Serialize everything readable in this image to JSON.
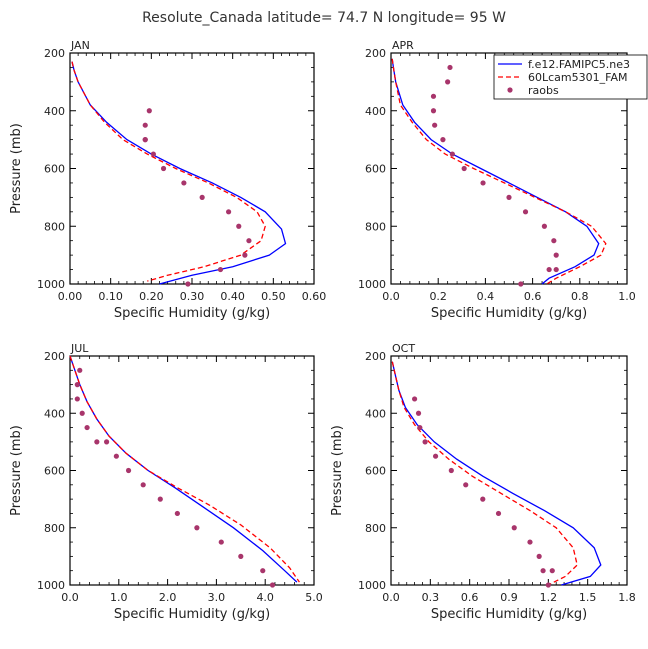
{
  "title": "Resolute_Canada   latitude= 74.7 N longitude= 95 W",
  "legend": {
    "position": "top-right of APR panel",
    "entries": [
      {
        "label": "f.e12.FAMIPC5.ne3",
        "color": "#0000ff",
        "style": "solid",
        "kind": "line"
      },
      {
        "label": "60Lcam5301_FAM",
        "color": "#ff0000",
        "style": "dashed",
        "kind": "line"
      },
      {
        "label": "raobs",
        "color": "#a8356b",
        "style": "dot",
        "kind": "marker"
      }
    ]
  },
  "chart_data": [
    {
      "type": "line",
      "panel": "JAN",
      "xlabel": "Specific Humidity (g/kg)",
      "ylabel": "Pressure (mb)",
      "xlim": [
        0,
        0.6
      ],
      "ylim": [
        200,
        1000
      ],
      "y_inverted": true,
      "xticks": [
        0,
        0.1,
        0.2,
        0.3,
        0.4,
        0.5,
        0.6
      ],
      "xtick_labels": [
        "0.00",
        "0.10",
        "0.20",
        "0.30",
        "0.40",
        "0.50",
        "0.60"
      ],
      "yticks": [
        200,
        400,
        600,
        800,
        1000
      ],
      "ytick_labels": [
        "200",
        "400",
        "600",
        "800",
        "1000"
      ],
      "series": [
        {
          "name": "f.e12.FAMIPC5.ne3",
          "color": "#0000ff",
          "style": "solid",
          "x": [
            0.005,
            0.01,
            0.02,
            0.05,
            0.09,
            0.14,
            0.2,
            0.27,
            0.35,
            0.42,
            0.48,
            0.52,
            0.53,
            0.49,
            0.4,
            0.3,
            0.22
          ],
          "y": [
            230,
            260,
            300,
            380,
            440,
            500,
            550,
            600,
            650,
            700,
            750,
            810,
            860,
            900,
            940,
            970,
            1000
          ]
        },
        {
          "name": "60Lcam5301_FAM",
          "color": "#ff0000",
          "style": "dashed",
          "x": [
            0.005,
            0.01,
            0.02,
            0.05,
            0.085,
            0.13,
            0.19,
            0.26,
            0.34,
            0.41,
            0.46,
            0.48,
            0.47,
            0.42,
            0.33,
            0.24,
            0.19
          ],
          "y": [
            230,
            260,
            300,
            380,
            440,
            500,
            550,
            600,
            650,
            700,
            750,
            800,
            850,
            900,
            940,
            970,
            990
          ]
        },
        {
          "name": "raobs",
          "color": "#a8356b",
          "style": "dot",
          "x": [
            0.195,
            0.185,
            0.185,
            0.185,
            0.205,
            0.23,
            0.28,
            0.325,
            0.39,
            0.415,
            0.44,
            0.43,
            0.37,
            0.29
          ],
          "y": [
            400,
            450,
            500,
            500,
            550,
            600,
            650,
            700,
            750,
            800,
            850,
            900,
            950,
            1000
          ]
        }
      ]
    },
    {
      "type": "line",
      "panel": "APR",
      "xlabel": "Specific Humidity (g/kg)",
      "ylabel": "",
      "xlim": [
        0,
        1.0
      ],
      "ylim": [
        200,
        1000
      ],
      "y_inverted": true,
      "xticks": [
        0,
        0.2,
        0.4,
        0.6,
        0.8,
        1.0
      ],
      "xtick_labels": [
        "0.0",
        "0.2",
        "0.4",
        "0.6",
        "0.8",
        "1.0"
      ],
      "yticks": [
        200,
        400,
        600,
        800,
        1000
      ],
      "ytick_labels": [
        "200",
        "400",
        "600",
        "800",
        "1000"
      ],
      "series": [
        {
          "name": "f.e12.FAMIPC5.ne3",
          "color": "#0000ff",
          "style": "solid",
          "x": [
            0.005,
            0.01,
            0.02,
            0.05,
            0.1,
            0.17,
            0.26,
            0.38,
            0.5,
            0.62,
            0.74,
            0.83,
            0.88,
            0.86,
            0.78,
            0.67,
            0.64
          ],
          "y": [
            220,
            250,
            300,
            380,
            440,
            500,
            550,
            600,
            650,
            700,
            750,
            800,
            860,
            900,
            940,
            980,
            1000
          ]
        },
        {
          "name": "60Lcam5301_FAM",
          "color": "#ff0000",
          "style": "dashed",
          "x": [
            0.005,
            0.01,
            0.02,
            0.04,
            0.09,
            0.15,
            0.23,
            0.35,
            0.48,
            0.61,
            0.74,
            0.85,
            0.91,
            0.89,
            0.8,
            0.7,
            0.66
          ],
          "y": [
            220,
            250,
            300,
            380,
            440,
            500,
            550,
            600,
            650,
            700,
            750,
            800,
            860,
            900,
            940,
            980,
            1000
          ]
        },
        {
          "name": "raobs",
          "color": "#a8356b",
          "style": "dot",
          "x": [
            0.25,
            0.24,
            0.18,
            0.18,
            0.185,
            0.22,
            0.26,
            0.31,
            0.39,
            0.5,
            0.57,
            0.65,
            0.69,
            0.7,
            0.7,
            0.67,
            0.55
          ],
          "y": [
            250,
            300,
            350,
            400,
            450,
            500,
            550,
            600,
            650,
            700,
            750,
            800,
            850,
            900,
            950,
            950,
            1000
          ]
        }
      ]
    },
    {
      "type": "line",
      "panel": "JUL",
      "xlabel": "Specific Humidity (g/kg)",
      "ylabel": "Pressure (mb)",
      "xlim": [
        0,
        5.0
      ],
      "ylim": [
        200,
        1000
      ],
      "y_inverted": true,
      "xticks": [
        0,
        1,
        2,
        3,
        4,
        5
      ],
      "xtick_labels": [
        "0.0",
        "1.0",
        "2.0",
        "3.0",
        "4.0",
        "5.0"
      ],
      "yticks": [
        200,
        400,
        600,
        800,
        1000
      ],
      "ytick_labels": [
        "200",
        "400",
        "600",
        "800",
        "1000"
      ],
      "series": [
        {
          "name": "f.e12.FAMIPC5.ne3",
          "color": "#0000ff",
          "style": "solid",
          "x": [
            0.0,
            0.1,
            0.2,
            0.35,
            0.55,
            0.8,
            1.15,
            1.6,
            2.15,
            2.75,
            3.35,
            3.95,
            4.4,
            4.65
          ],
          "y": [
            200,
            250,
            300,
            360,
            420,
            480,
            540,
            600,
            660,
            730,
            800,
            880,
            950,
            990
          ]
        },
        {
          "name": "60Lcam5301_FAM",
          "color": "#ff0000",
          "style": "dashed",
          "x": [
            0.0,
            0.1,
            0.2,
            0.35,
            0.55,
            0.8,
            1.15,
            1.6,
            2.2,
            2.85,
            3.5,
            4.1,
            4.5,
            4.7
          ],
          "y": [
            200,
            250,
            300,
            360,
            420,
            480,
            540,
            600,
            660,
            720,
            790,
            870,
            940,
            990
          ]
        },
        {
          "name": "raobs",
          "color": "#a8356b",
          "style": "dot",
          "x": [
            0.2,
            0.15,
            0.15,
            0.25,
            0.35,
            0.55,
            0.75,
            0.95,
            1.2,
            1.5,
            1.85,
            2.2,
            2.6,
            3.1,
            3.5,
            3.95,
            4.15
          ],
          "y": [
            250,
            300,
            350,
            400,
            450,
            500,
            500,
            550,
            600,
            650,
            700,
            750,
            800,
            850,
            900,
            950,
            1000
          ]
        }
      ]
    },
    {
      "type": "line",
      "panel": "OCT",
      "xlabel": "Specific Humidity (g/kg)",
      "ylabel": "Pressure (mb)",
      "xlim": [
        0,
        1.8
      ],
      "ylim": [
        200,
        1000
      ],
      "y_inverted": true,
      "xticks": [
        0,
        0.3,
        0.6,
        0.9,
        1.2,
        1.5,
        1.8
      ],
      "xtick_labels": [
        "0.0",
        "0.3",
        "0.6",
        "0.9",
        "1.2",
        "1.5",
        "1.8"
      ],
      "yticks": [
        200,
        400,
        600,
        800,
        1000
      ],
      "ytick_labels": [
        "200",
        "400",
        "600",
        "800",
        "1000"
      ],
      "series": [
        {
          "name": "f.e12.FAMIPC5.ne3",
          "color": "#0000ff",
          "style": "solid",
          "x": [
            0.01,
            0.03,
            0.06,
            0.11,
            0.2,
            0.33,
            0.5,
            0.7,
            0.93,
            1.17,
            1.39,
            1.55,
            1.6,
            1.52,
            1.3
          ],
          "y": [
            220,
            260,
            320,
            380,
            440,
            500,
            560,
            620,
            680,
            740,
            800,
            870,
            930,
            970,
            1000
          ]
        },
        {
          "name": "60Lcam5301_FAM",
          "color": "#ff0000",
          "style": "dashed",
          "x": [
            0.01,
            0.03,
            0.06,
            0.1,
            0.18,
            0.29,
            0.44,
            0.62,
            0.84,
            1.06,
            1.26,
            1.39,
            1.42,
            1.33,
            1.2
          ],
          "y": [
            220,
            260,
            320,
            380,
            440,
            500,
            560,
            620,
            680,
            740,
            800,
            870,
            930,
            970,
            1000
          ]
        },
        {
          "name": "raobs",
          "color": "#a8356b",
          "style": "dot",
          "x": [
            0.18,
            0.21,
            0.22,
            0.26,
            0.34,
            0.46,
            0.57,
            0.7,
            0.82,
            0.94,
            1.06,
            1.13,
            1.16,
            1.23,
            1.2
          ],
          "y": [
            350,
            400,
            450,
            500,
            550,
            600,
            650,
            700,
            750,
            800,
            850,
            900,
            950,
            950,
            1000
          ]
        }
      ]
    }
  ]
}
